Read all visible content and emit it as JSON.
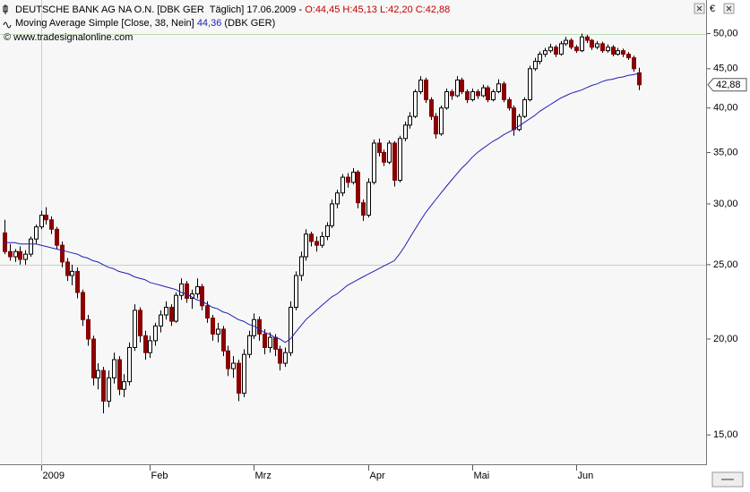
{
  "chart_data": {
    "type": "candlestick",
    "title": "DEUTSCHE BANK AG NA O.N. [DBK GER  Täglich] 17.06.2009 -",
    "ohlc_text": "O:44,45 H:45,13 L:42,20 C:42,88",
    "ma_name": "Moving Average Simple [Close, 38, Nein]",
    "ma_value_label": "44,36",
    "ma_suffix": "(DBK GER)",
    "source": "© www.tradesignalonline.com",
    "currency": "€",
    "log_scale": true,
    "ylim": [
      13.7,
      55.3
    ],
    "yticks": [
      {
        "value": 15,
        "label": "15,00"
      },
      {
        "value": 20,
        "label": "20,00"
      },
      {
        "value": 25,
        "label": "25,00"
      },
      {
        "value": 30,
        "label": "30,00"
      },
      {
        "value": 35,
        "label": "35,00"
      },
      {
        "value": 40,
        "label": "40,00"
      },
      {
        "value": 45,
        "label": "45,00"
      },
      {
        "value": 50,
        "label": "50,00"
      }
    ],
    "ygrid": [
      25,
      50
    ],
    "xgrid_category": "2009",
    "up_color": "#ffffff",
    "down_color": "#8b0000",
    "ma_color": "#1f1fb4",
    "grid_color": "#b8dcb0",
    "last_price_label": "42,88",
    "categories": [
      null,
      null,
      null,
      null,
      null,
      null,
      null,
      "2009",
      null,
      null,
      null,
      null,
      null,
      null,
      null,
      null,
      null,
      null,
      null,
      null,
      null,
      null,
      null,
      null,
      null,
      null,
      null,
      null,
      "Feb",
      null,
      null,
      null,
      null,
      null,
      null,
      null,
      null,
      null,
      null,
      null,
      null,
      null,
      null,
      null,
      null,
      null,
      null,
      null,
      "Mrz",
      null,
      null,
      null,
      null,
      null,
      null,
      null,
      null,
      null,
      null,
      null,
      null,
      null,
      null,
      null,
      null,
      null,
      null,
      null,
      null,
      null,
      "Apr",
      null,
      null,
      null,
      null,
      null,
      null,
      null,
      null,
      null,
      null,
      null,
      null,
      null,
      null,
      null,
      null,
      null,
      null,
      null,
      "Mai",
      null,
      null,
      null,
      null,
      null,
      null,
      null,
      null,
      null,
      null,
      null,
      null,
      null,
      null,
      null,
      null,
      null,
      null,
      null,
      "Jun",
      null,
      null,
      null,
      null,
      null,
      null,
      null,
      null,
      null,
      null,
      null,
      null
    ],
    "candles": [
      [
        27.5,
        28.6,
        25.8,
        26.0
      ],
      [
        26.0,
        26.6,
        25.3,
        25.6
      ],
      [
        25.6,
        26.2,
        25.2,
        26.0
      ],
      [
        26.0,
        26.4,
        25.0,
        25.4
      ],
      [
        25.4,
        26.1,
        25.0,
        25.8
      ],
      [
        25.8,
        27.2,
        25.6,
        27.0
      ],
      [
        27.0,
        28.2,
        26.6,
        28.0
      ],
      [
        28.0,
        29.4,
        27.8,
        29.0
      ],
      [
        29.0,
        29.7,
        28.2,
        28.6
      ],
      [
        28.6,
        28.9,
        27.4,
        27.8
      ],
      [
        27.8,
        28.0,
        26.2,
        26.5
      ],
      [
        26.5,
        26.8,
        24.8,
        25.2
      ],
      [
        25.2,
        25.5,
        23.8,
        24.2
      ],
      [
        24.2,
        25.0,
        23.5,
        24.5
      ],
      [
        24.5,
        24.8,
        22.6,
        23.0
      ],
      [
        23.0,
        23.2,
        20.8,
        21.2
      ],
      [
        21.2,
        21.5,
        19.6,
        20.0
      ],
      [
        20.0,
        20.2,
        17.4,
        17.8
      ],
      [
        17.8,
        18.6,
        17.2,
        18.2
      ],
      [
        18.2,
        18.4,
        16.0,
        16.6
      ],
      [
        16.6,
        18.2,
        16.3,
        17.8
      ],
      [
        17.8,
        19.2,
        17.5,
        18.8
      ],
      [
        18.8,
        19.0,
        16.9,
        17.2
      ],
      [
        17.2,
        18.0,
        16.8,
        17.6
      ],
      [
        17.6,
        19.8,
        17.4,
        19.5
      ],
      [
        19.5,
        22.2,
        19.3,
        21.8
      ],
      [
        21.8,
        22.0,
        19.8,
        20.2
      ],
      [
        20.2,
        20.5,
        18.8,
        19.2
      ],
      [
        19.2,
        20.2,
        18.9,
        19.9
      ],
      [
        19.9,
        21.0,
        19.6,
        20.8
      ],
      [
        20.8,
        21.8,
        20.4,
        21.5
      ],
      [
        21.5,
        22.4,
        21.2,
        22.0
      ],
      [
        22.0,
        22.2,
        20.8,
        21.1
      ],
      [
        21.1,
        23.0,
        21.0,
        22.8
      ],
      [
        22.8,
        24.0,
        22.5,
        23.6
      ],
      [
        23.6,
        23.8,
        22.3,
        22.6
      ],
      [
        22.6,
        23.2,
        21.9,
        22.9
      ],
      [
        22.9,
        24.0,
        22.6,
        23.4
      ],
      [
        23.4,
        23.6,
        21.8,
        22.1
      ],
      [
        22.1,
        22.4,
        21.0,
        21.3
      ],
      [
        21.3,
        21.5,
        19.9,
        20.3
      ],
      [
        20.3,
        21.0,
        19.8,
        20.6
      ],
      [
        20.6,
        20.8,
        19.0,
        19.3
      ],
      [
        19.3,
        19.6,
        17.9,
        18.3
      ],
      [
        18.3,
        19.0,
        17.8,
        18.6
      ],
      [
        18.6,
        18.8,
        16.6,
        17.0
      ],
      [
        17.0,
        19.4,
        16.8,
        19.1
      ],
      [
        19.1,
        20.5,
        18.9,
        20.2
      ],
      [
        20.2,
        21.6,
        20.0,
        21.2
      ],
      [
        21.2,
        21.4,
        19.9,
        20.3
      ],
      [
        20.3,
        20.6,
        19.1,
        19.5
      ],
      [
        19.5,
        20.4,
        19.2,
        20.1
      ],
      [
        20.1,
        20.3,
        19.0,
        19.4
      ],
      [
        19.4,
        19.6,
        18.2,
        18.6
      ],
      [
        18.6,
        19.5,
        18.4,
        19.2
      ],
      [
        19.2,
        22.4,
        19.0,
        22.0
      ],
      [
        22.0,
        24.5,
        21.8,
        24.2
      ],
      [
        24.2,
        26.0,
        23.8,
        25.6
      ],
      [
        25.6,
        27.8,
        25.3,
        27.4
      ],
      [
        27.4,
        27.6,
        26.4,
        26.8
      ],
      [
        26.8,
        27.2,
        26.0,
        26.5
      ],
      [
        26.5,
        27.6,
        26.3,
        27.2
      ],
      [
        27.2,
        28.4,
        26.9,
        28.1
      ],
      [
        28.1,
        30.4,
        27.9,
        30.0
      ],
      [
        30.0,
        31.3,
        29.6,
        31.0
      ],
      [
        31.0,
        32.8,
        30.7,
        32.5
      ],
      [
        32.5,
        32.9,
        31.5,
        32.0
      ],
      [
        32.0,
        33.4,
        31.8,
        33.0
      ],
      [
        33.0,
        33.2,
        29.6,
        30.1
      ],
      [
        30.1,
        30.4,
        28.5,
        29.0
      ],
      [
        29.0,
        32.4,
        28.8,
        32.0
      ],
      [
        32.0,
        36.4,
        31.8,
        36.0
      ],
      [
        36.0,
        36.5,
        34.6,
        35.0
      ],
      [
        35.0,
        35.3,
        33.6,
        34.0
      ],
      [
        34.0,
        36.3,
        33.8,
        36.0
      ],
      [
        36.0,
        36.2,
        31.6,
        32.2
      ],
      [
        32.2,
        36.8,
        32.0,
        36.5
      ],
      [
        36.5,
        38.4,
        36.2,
        38.0
      ],
      [
        38.0,
        39.5,
        37.6,
        39.0
      ],
      [
        39.0,
        42.3,
        38.8,
        42.0
      ],
      [
        42.0,
        44.0,
        41.7,
        43.5
      ],
      [
        43.5,
        43.8,
        40.6,
        41.0
      ],
      [
        41.0,
        41.3,
        38.6,
        39.0
      ],
      [
        39.0,
        39.4,
        36.5,
        37.0
      ],
      [
        37.0,
        40.3,
        36.8,
        40.0
      ],
      [
        40.0,
        42.4,
        39.8,
        42.0
      ],
      [
        42.0,
        42.3,
        41.0,
        41.5
      ],
      [
        41.5,
        44.0,
        41.3,
        43.5
      ],
      [
        43.5,
        43.8,
        41.7,
        42.0
      ],
      [
        42.0,
        42.3,
        40.6,
        41.0
      ],
      [
        41.0,
        42.4,
        40.8,
        42.0
      ],
      [
        42.0,
        42.3,
        41.1,
        41.5
      ],
      [
        41.5,
        42.9,
        41.3,
        42.5
      ],
      [
        42.5,
        42.8,
        40.7,
        41.0
      ],
      [
        41.0,
        42.3,
        40.8,
        42.0
      ],
      [
        42.0,
        43.6,
        41.8,
        43.0
      ],
      [
        43.0,
        43.3,
        40.7,
        41.0
      ],
      [
        41.0,
        41.3,
        39.7,
        40.0
      ],
      [
        40.0,
        40.3,
        36.8,
        37.5
      ],
      [
        37.5,
        39.3,
        37.3,
        39.0
      ],
      [
        39.0,
        41.3,
        38.8,
        41.0
      ],
      [
        41.0,
        45.4,
        40.8,
        45.0
      ],
      [
        45.0,
        46.5,
        44.7,
        46.0
      ],
      [
        46.0,
        47.4,
        45.6,
        47.0
      ],
      [
        47.0,
        47.9,
        46.6,
        47.5
      ],
      [
        47.5,
        48.5,
        47.2,
        48.0
      ],
      [
        48.0,
        48.3,
        46.6,
        47.0
      ],
      [
        47.0,
        48.9,
        46.8,
        48.5
      ],
      [
        48.5,
        49.5,
        48.2,
        49.0
      ],
      [
        49.0,
        49.3,
        47.7,
        48.0
      ],
      [
        48.0,
        48.3,
        47.2,
        47.5
      ],
      [
        47.5,
        50.0,
        47.3,
        49.5
      ],
      [
        49.5,
        49.8,
        48.6,
        49.0
      ],
      [
        49.0,
        49.2,
        47.6,
        48.0
      ],
      [
        48.0,
        48.9,
        47.7,
        48.5
      ],
      [
        48.5,
        48.8,
        47.2,
        47.5
      ],
      [
        47.5,
        48.4,
        47.2,
        48.0
      ],
      [
        48.0,
        48.3,
        46.7,
        47.0
      ],
      [
        47.0,
        47.9,
        46.8,
        47.5
      ],
      [
        47.5,
        47.8,
        46.6,
        47.0
      ],
      [
        47.0,
        47.3,
        46.2,
        46.5
      ],
      [
        46.5,
        46.8,
        44.6,
        45.0
      ],
      [
        44.45,
        45.13,
        42.2,
        42.88
      ]
    ],
    "ma": [
      26.7,
      26.7,
      26.7,
      26.6,
      26.6,
      26.6,
      26.6,
      26.5,
      26.4,
      26.3,
      26.2,
      26.1,
      26.0,
      25.9,
      25.8,
      25.6,
      25.5,
      25.3,
      25.2,
      25.0,
      24.8,
      24.7,
      24.5,
      24.4,
      24.3,
      24.1,
      24.0,
      23.9,
      23.7,
      23.6,
      23.5,
      23.4,
      23.3,
      23.2,
      23.0,
      22.9,
      22.7,
      22.5,
      22.4,
      22.2,
      22.0,
      21.9,
      21.7,
      21.6,
      21.4,
      21.2,
      21.1,
      20.9,
      20.8,
      20.6,
      20.4,
      20.3,
      20.1,
      20.0,
      19.8,
      20.0,
      20.4,
      20.8,
      21.2,
      21.5,
      21.8,
      22.1,
      22.4,
      22.7,
      22.9,
      23.2,
      23.5,
      23.7,
      23.9,
      24.1,
      24.3,
      24.5,
      24.7,
      24.9,
      25.1,
      25.3,
      25.8,
      26.4,
      27.1,
      27.8,
      28.5,
      29.2,
      29.8,
      30.4,
      31.0,
      31.6,
      32.2,
      32.8,
      33.4,
      33.9,
      34.5,
      35.0,
      35.4,
      35.8,
      36.2,
      36.5,
      36.9,
      37.2,
      37.5,
      37.9,
      38.3,
      38.7,
      39.1,
      39.6,
      40.0,
      40.4,
      40.8,
      41.2,
      41.5,
      41.8,
      42.0,
      42.2,
      42.5,
      42.8,
      43.0,
      43.3,
      43.5,
      43.6,
      43.8,
      43.9,
      44.1,
      44.2,
      44.36
    ]
  }
}
